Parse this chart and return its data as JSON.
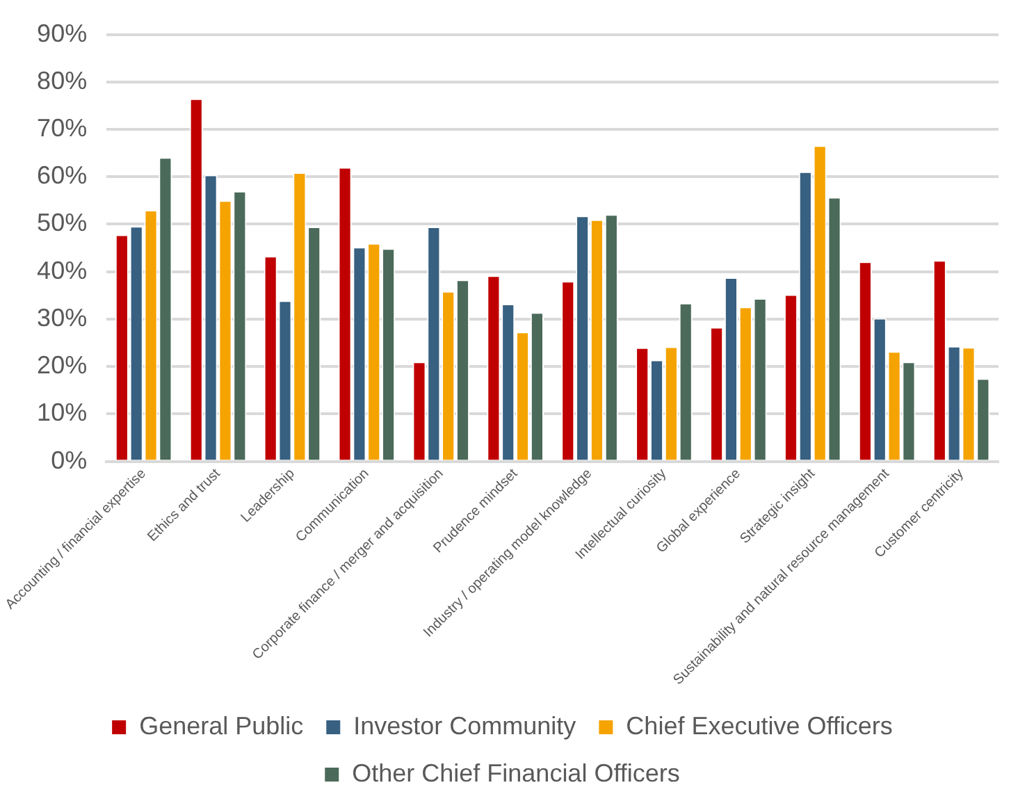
{
  "chart_data": {
    "type": "bar",
    "categories": [
      "Accounting / financial expertise",
      "Ethics and trust",
      "Leadership",
      "Communication",
      "Corporate finance / merger and acquisition",
      "Prudence mindset",
      "Industry / operating model knowledge",
      "Intellectual curiosity",
      "Global experience",
      "Strategic insight",
      "Sustainability and natural resource management",
      "Customer centricity"
    ],
    "series": [
      {
        "name": "General Public",
        "color": "#c00000",
        "values": [
          47.8,
          76.5,
          43.3,
          62,
          21,
          39.2,
          38,
          24,
          28.3,
          35.2,
          42.1,
          42.4
        ]
      },
      {
        "name": "Investor Community",
        "color": "#376081",
        "values": [
          49.6,
          60.4,
          33.9,
          45.2,
          49.5,
          33.2,
          51.8,
          21.4,
          38.8,
          61.1,
          30.2,
          24.3
        ]
      },
      {
        "name": "Chief Executive Officers",
        "color": "#f5a300",
        "values": [
          53,
          55,
          60.9,
          46,
          35.9,
          27.3,
          51,
          24.2,
          32.6,
          66.6,
          23.2,
          24.1
        ]
      },
      {
        "name": "Other Chief Financial Officers",
        "color": "#4b6a5a",
        "values": [
          64.1,
          57,
          49.5,
          44.9,
          38.3,
          31.4,
          52.1,
          33.4,
          34.4,
          55.7,
          21,
          17.5
        ]
      }
    ],
    "ylim": [
      0,
      90
    ],
    "yticks": [
      {
        "value": 0,
        "label": "0%"
      },
      {
        "value": 10,
        "label": "10%"
      },
      {
        "value": 20,
        "label": "20%"
      },
      {
        "value": 30,
        "label": "30%"
      },
      {
        "value": 40,
        "label": "40%"
      },
      {
        "value": 50,
        "label": "50%"
      },
      {
        "value": 60,
        "label": "60%"
      },
      {
        "value": 70,
        "label": "70%"
      },
      {
        "value": 80,
        "label": "80%"
      },
      {
        "value": 90,
        "label": "90%"
      }
    ],
    "grid": "y",
    "legend": "bottom"
  }
}
